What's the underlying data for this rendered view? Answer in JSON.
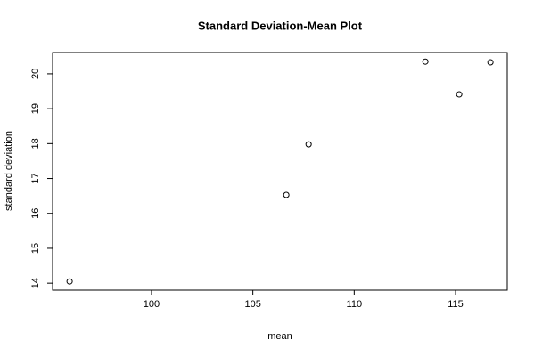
{
  "chart_data": {
    "type": "scatter",
    "title": "Standard Deviation-Mean Plot",
    "x_label": "mean",
    "y_label": "standard deviation",
    "x": [
      95.96,
      106.65,
      107.75,
      113.51,
      115.18,
      116.72
    ],
    "values": [
      14.05,
      16.53,
      17.98,
      20.35,
      19.41,
      20.33
    ],
    "color": "#000000",
    "xlim": [
      95.12,
      117.55
    ],
    "ylim": [
      13.8,
      20.61
    ],
    "xticks": [
      100,
      105,
      110,
      115
    ],
    "yticks": [
      14,
      15,
      16,
      17,
      18,
      19,
      20
    ]
  }
}
